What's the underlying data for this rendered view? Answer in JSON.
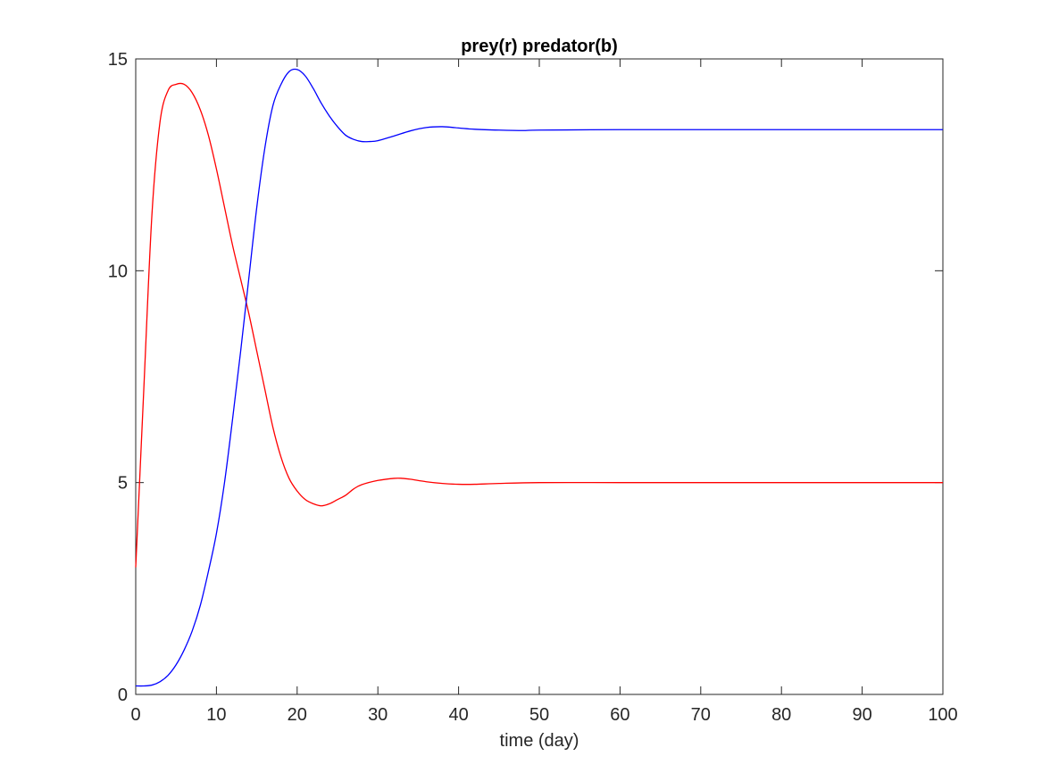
{
  "chart_data": {
    "type": "line",
    "title": "prey(r) predator(b)",
    "xlabel": "time (day)",
    "ylabel": "",
    "xlim": [
      0,
      100
    ],
    "ylim": [
      0,
      15
    ],
    "xticks": [
      0,
      10,
      20,
      30,
      40,
      50,
      60,
      70,
      80,
      90,
      100
    ],
    "yticks": [
      0,
      5,
      10,
      15
    ],
    "grid": false,
    "series": [
      {
        "color": "#ff0000",
        "x": [
          0,
          1,
          2,
          3,
          4,
          5,
          6,
          7,
          8,
          9,
          10,
          11,
          12,
          13,
          14,
          15,
          16,
          17,
          18,
          19,
          20,
          21,
          22,
          23,
          24,
          25,
          26,
          27,
          28,
          30,
          32,
          33,
          34,
          36,
          38,
          40,
          42,
          45,
          50,
          60,
          70,
          80,
          90,
          100
        ],
        "y": [
          3.0,
          7.2,
          11.3,
          13.5,
          14.25,
          14.4,
          14.4,
          14.2,
          13.8,
          13.2,
          12.4,
          11.5,
          10.6,
          9.8,
          9.0,
          8.1,
          7.2,
          6.3,
          5.6,
          5.1,
          4.8,
          4.6,
          4.5,
          4.45,
          4.5,
          4.6,
          4.7,
          4.85,
          4.95,
          5.05,
          5.1,
          5.1,
          5.08,
          5.02,
          4.98,
          4.96,
          4.96,
          4.98,
          5.0,
          5.0,
          5.0,
          5.0,
          5.0,
          5.0
        ]
      },
      {
        "color": "#0000ff",
        "x": [
          0,
          1,
          2,
          3,
          4,
          5,
          6,
          7,
          8,
          9,
          10,
          11,
          12,
          13,
          14,
          15,
          16,
          17,
          18,
          19,
          20,
          21,
          22,
          23,
          24,
          25,
          26,
          27,
          28,
          29,
          30,
          32,
          34,
          36,
          38,
          40,
          42,
          45,
          48,
          50,
          60,
          70,
          80,
          90,
          100
        ],
        "y": [
          0.2,
          0.2,
          0.22,
          0.3,
          0.45,
          0.7,
          1.05,
          1.5,
          2.1,
          2.9,
          3.8,
          5.0,
          6.5,
          8.1,
          9.8,
          11.5,
          12.9,
          13.9,
          14.4,
          14.7,
          14.75,
          14.6,
          14.3,
          13.95,
          13.65,
          13.4,
          13.2,
          13.1,
          13.05,
          13.05,
          13.07,
          13.18,
          13.3,
          13.38,
          13.4,
          13.37,
          13.34,
          13.32,
          13.31,
          13.32,
          13.33,
          13.33,
          13.33,
          13.33,
          13.33
        ]
      }
    ]
  }
}
